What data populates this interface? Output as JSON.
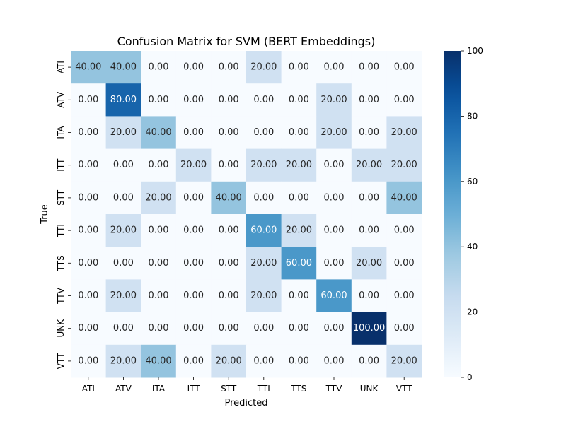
{
  "chart_data": {
    "type": "heatmap",
    "title": "Confusion Matrix for SVM (BERT Embeddings)",
    "xlabel": "Predicted",
    "ylabel": "True",
    "x_categories": [
      "ATI",
      "ATV",
      "ITA",
      "ITT",
      "STT",
      "TTI",
      "TTS",
      "TTV",
      "UNK",
      "VTT"
    ],
    "y_categories": [
      "ATI",
      "ATV",
      "ITA",
      "ITT",
      "STT",
      "TTI",
      "TTS",
      "TTV",
      "UNK",
      "VTT"
    ],
    "values": [
      [
        40,
        40,
        0,
        0,
        0,
        20,
        0,
        0,
        0,
        0
      ],
      [
        0,
        80,
        0,
        0,
        0,
        0,
        0,
        20,
        0,
        0
      ],
      [
        0,
        20,
        40,
        0,
        0,
        0,
        0,
        20,
        0,
        20
      ],
      [
        0,
        0,
        0,
        20,
        0,
        20,
        20,
        0,
        20,
        20
      ],
      [
        0,
        0,
        20,
        0,
        40,
        0,
        0,
        0,
        0,
        40
      ],
      [
        0,
        20,
        0,
        0,
        0,
        60,
        20,
        0,
        0,
        0
      ],
      [
        0,
        0,
        0,
        0,
        0,
        20,
        60,
        0,
        20,
        0
      ],
      [
        0,
        20,
        0,
        0,
        0,
        20,
        0,
        60,
        0,
        0
      ],
      [
        0,
        0,
        0,
        0,
        0,
        0,
        0,
        0,
        100,
        0
      ],
      [
        0,
        20,
        40,
        0,
        20,
        0,
        0,
        0,
        0,
        20
      ]
    ],
    "value_format": "fixed-2",
    "colormap": "Blues",
    "color_range": [
      0,
      100
    ],
    "colorbar_ticks": [
      0,
      20,
      40,
      60,
      80,
      100
    ],
    "colorbar_position": "right",
    "grid": false
  }
}
